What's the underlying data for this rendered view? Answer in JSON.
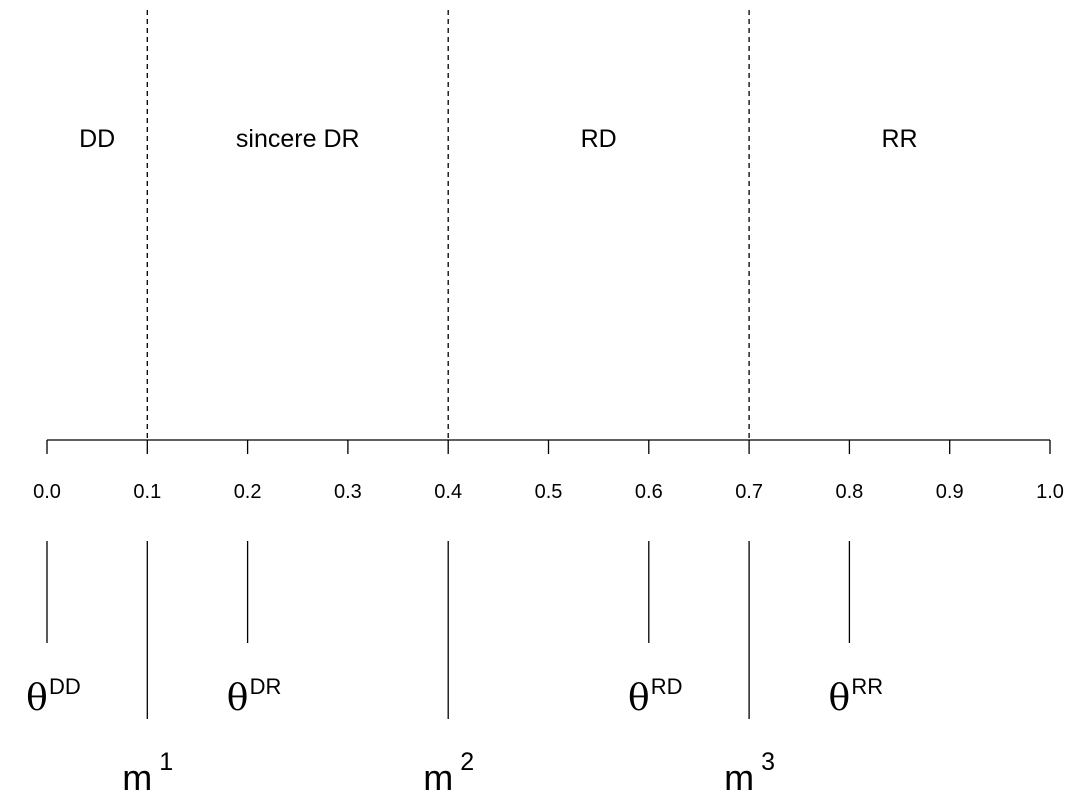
{
  "regions": [
    {
      "label": "DD",
      "center": 0.05
    },
    {
      "label": "sincere DR",
      "center": 0.25
    },
    {
      "label": "RD",
      "center": 0.55
    },
    {
      "label": "RR",
      "center": 0.85
    }
  ],
  "boundaries": [
    0.1,
    0.4,
    0.7
  ],
  "axis": {
    "range": [
      0.0,
      1.0
    ],
    "ticks": [
      0.0,
      0.1,
      0.2,
      0.3,
      0.4,
      0.5,
      0.6,
      0.7,
      0.8,
      0.9,
      1.0
    ],
    "tick_labels": [
      "0.0",
      "0.1",
      "0.2",
      "0.3",
      "0.4",
      "0.5",
      "0.6",
      "0.7",
      "0.8",
      "0.9",
      "1.0"
    ]
  },
  "thetas": [
    {
      "value": 0.0,
      "symbol": "θ",
      "sup": "DD"
    },
    {
      "value": 0.2,
      "symbol": "θ",
      "sup": "DR"
    },
    {
      "value": 0.6,
      "symbol": "θ",
      "sup": "RD"
    },
    {
      "value": 0.8,
      "symbol": "θ",
      "sup": "RR"
    }
  ],
  "midpoints": [
    {
      "value": 0.1,
      "symbol": "m",
      "sup": "1"
    },
    {
      "value": 0.4,
      "symbol": "m",
      "sup": "2"
    },
    {
      "value": 0.7,
      "symbol": "m",
      "sup": "3"
    }
  ]
}
